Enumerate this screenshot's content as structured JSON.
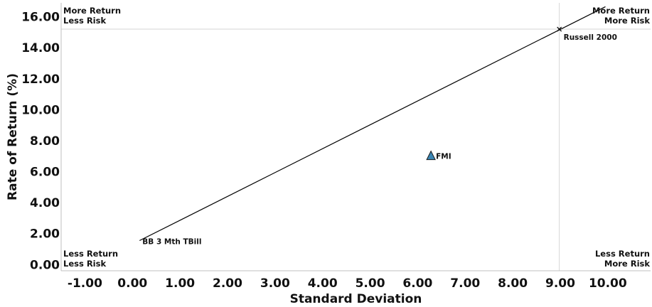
{
  "chart_data": {
    "type": "scatter",
    "xlabel": "Standard Deviation",
    "ylabel": "Rate of Return (%)",
    "xlim": [
      -1.5,
      10.9
    ],
    "ylim": [
      -0.4,
      16.9
    ],
    "x_ticks": [
      "-1.00",
      "0.00",
      "1.00",
      "2.00",
      "3.00",
      "4.00",
      "5.00",
      "6.00",
      "7.00",
      "8.00",
      "9.00",
      "10.00"
    ],
    "y_ticks": [
      "0.00",
      "2.00",
      "4.00",
      "6.00",
      "8.00",
      "10.00",
      "12.00",
      "14.00",
      "16.00"
    ],
    "reference_lines": {
      "x": 8.98,
      "y": 15.2
    },
    "capital_market_line": {
      "x": [
        0.15,
        9.95
      ],
      "y": [
        1.55,
        16.65
      ]
    },
    "points": [
      {
        "name": "BB 3 Mth TBill",
        "x": 0.15,
        "y": 1.55,
        "marker": "none"
      },
      {
        "name": "Russell 2000",
        "x": 8.98,
        "y": 15.2,
        "marker": "cross"
      },
      {
        "name": "FMI",
        "x": 6.28,
        "y": 7.05,
        "marker": "triangle",
        "color": "#3a86b4"
      }
    ],
    "quadrant_labels": [
      {
        "lines": [
          "More Return",
          "Less Risk"
        ],
        "position": "top-left"
      },
      {
        "lines": [
          "More Return",
          "More Risk"
        ],
        "position": "top-right"
      },
      {
        "lines": [
          "Less Return",
          "Less Risk"
        ],
        "position": "bottom-left"
      },
      {
        "lines": [
          "Less Return",
          "More Risk"
        ],
        "position": "bottom-right"
      }
    ],
    "grid": false,
    "legend": "none"
  }
}
